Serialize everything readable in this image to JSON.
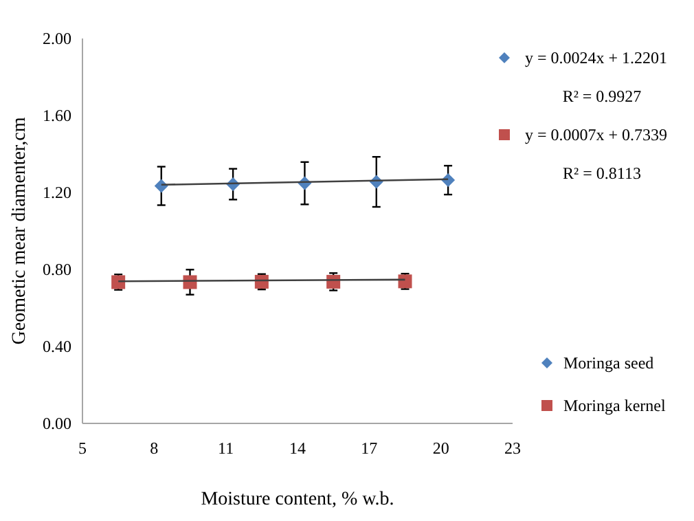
{
  "chart_data": {
    "type": "scatter",
    "xlabel": "Moisture  content, % w.b.",
    "ylabel": "Geometic mear diamenter,cm",
    "xlim": [
      5,
      23
    ],
    "xticks": [
      5,
      8,
      11,
      14,
      17,
      20,
      23
    ],
    "ylim": [
      0,
      2
    ],
    "yticks": [
      {
        "value": 0,
        "label": "0.00"
      },
      {
        "value": 0.4,
        "label": "0.40"
      },
      {
        "value": 0.8,
        "label": "0.80"
      },
      {
        "value": 1.2,
        "label": "1.20"
      },
      {
        "value": 1.6,
        "label": "1.60"
      },
      {
        "value": 2,
        "label": "2.00"
      }
    ],
    "grid": false,
    "legend": "right",
    "series": [
      {
        "name": "Moringa seed",
        "color": "#4f81bd",
        "marker": "diamond",
        "x": [
          8.3,
          11.3,
          14.3,
          17.3,
          20.3
        ],
        "values": [
          1.234,
          1.243,
          1.248,
          1.255,
          1.264
        ],
        "errors": [
          0.1,
          0.08,
          0.11,
          0.13,
          0.075
        ]
      },
      {
        "name": "Moringa kernel",
        "color": "#c0504d",
        "marker": "square",
        "x": [
          6.5,
          9.5,
          12.5,
          15.5,
          18.5
        ],
        "values": [
          0.734,
          0.734,
          0.736,
          0.736,
          0.738
        ],
        "errors": [
          0.04,
          0.065,
          0.04,
          0.045,
          0.04
        ]
      },
      {
        "type": "line",
        "color": "#404040",
        "marker": "none",
        "x": [
          8.3,
          20.3
        ],
        "values": [
          1.24,
          1.269
        ]
      },
      {
        "type": "line",
        "color": "#404040",
        "marker": "none",
        "x": [
          6.5,
          18.5
        ],
        "values": [
          0.7385,
          0.747
        ]
      }
    ],
    "annotations": [
      "y = 0.0024x + 1.2201",
      "R² = 0.9927",
      "y = 0.0007x + 0.7339",
      "R² = 0.8113"
    ]
  }
}
